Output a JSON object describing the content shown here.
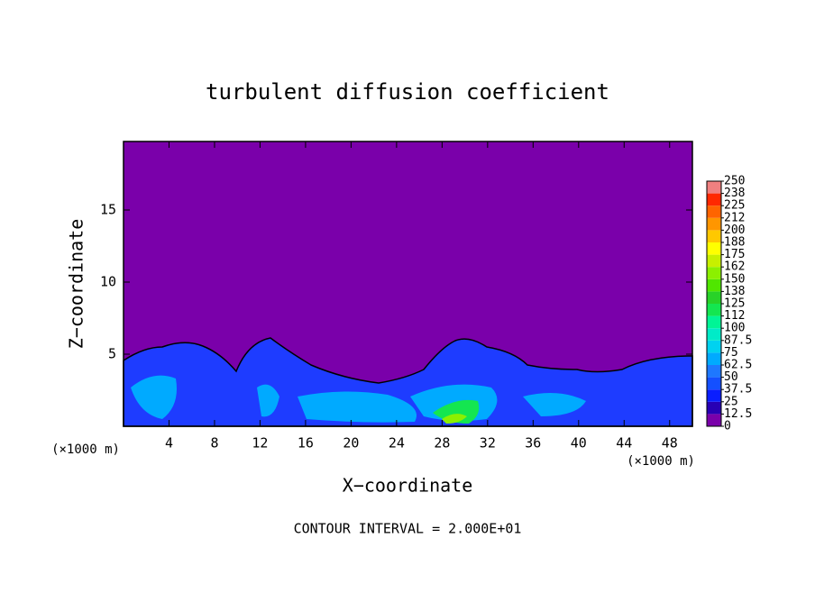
{
  "chart_data": {
    "type": "contour",
    "title": "turbulent diffusion coefficient",
    "x_label": "X−coordinate",
    "y_label": "Z−coordinate",
    "x_unit_label": "(×1000 m)",
    "y_unit_label": "(×1000 m)",
    "footnote": "CONTOUR INTERVAL = 2.000E+01",
    "xlim": [
      0,
      50
    ],
    "xticks": [
      4,
      8,
      12,
      16,
      20,
      24,
      28,
      32,
      36,
      40,
      44,
      48
    ],
    "ylim": [
      0,
      19.75
    ],
    "yticks": [
      5,
      10,
      15
    ],
    "colorbar": {
      "ticks": [
        0,
        12.5,
        25,
        37.5,
        50,
        62.5,
        75,
        87.5,
        100,
        {
          "value": 112.5,
          "label": "112"
        },
        125,
        {
          "value": 137.5,
          "label": "138"
        },
        150,
        {
          "value": 162.5,
          "label": "162"
        },
        175,
        {
          "value": 187.5,
          "label": "188"
        },
        200,
        {
          "value": 212.5,
          "label": "212"
        },
        225,
        {
          "value": 237.5,
          "label": "238"
        },
        250
      ],
      "colors": [
        "#7a00aa",
        "#2800b4",
        "#0a1eff",
        "#1450ff",
        "#1e78ff",
        "#00aaff",
        "#00d2f0",
        "#00ebc8",
        "#00f596",
        "#14e650",
        "#28d228",
        "#50e600",
        "#8cf000",
        "#c8f000",
        "#ffff00",
        "#ffc800",
        "#ff9600",
        "#ff6400",
        "#ff2800",
        "#f08080"
      ]
    }
  }
}
